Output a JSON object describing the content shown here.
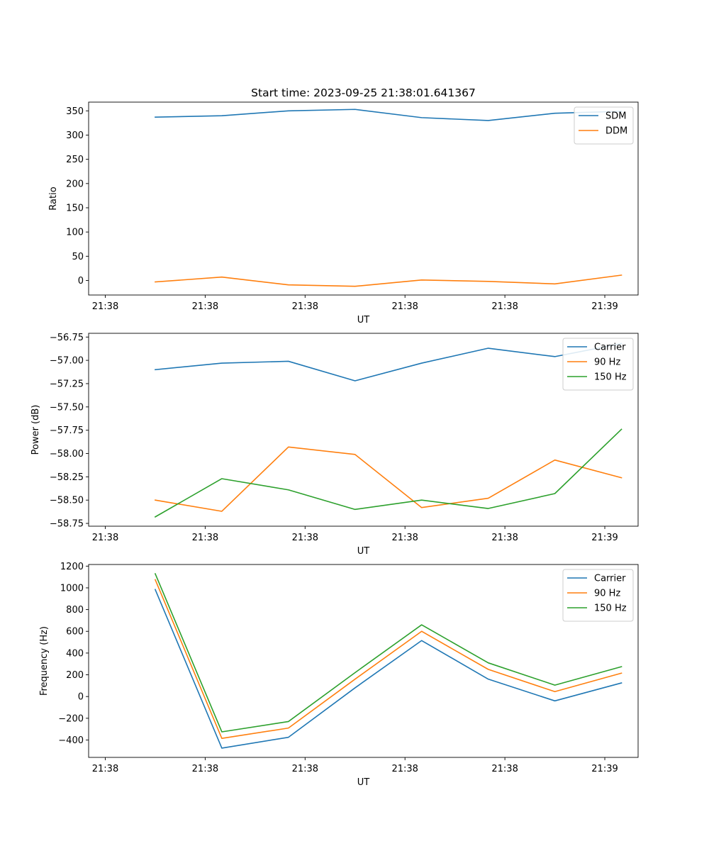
{
  "title": "Start time: 2023-09-25 21:38:01.641367",
  "colors": {
    "c0": "#1f77b4",
    "c1": "#ff7f0e",
    "c2": "#2ca02c"
  },
  "chart_data": [
    {
      "type": "line",
      "ylabel": "Ratio",
      "xlabel": "UT",
      "x": [
        1,
        2,
        3,
        4,
        5,
        6,
        7,
        8
      ],
      "x_tick_positions": [
        0.25,
        1.75,
        3.25,
        4.75,
        6.25,
        7.75
      ],
      "x_tick_labels": [
        "21:38",
        "21:38",
        "21:38",
        "21:38",
        "21:38",
        "21:39"
      ],
      "xlim": [
        0.0,
        8.25
      ],
      "ylim": [
        -30,
        368
      ],
      "y_ticks": [
        0,
        50,
        100,
        150,
        200,
        250,
        300,
        350
      ],
      "y_tick_labels": [
        "0",
        "50",
        "100",
        "150",
        "200",
        "250",
        "300",
        "350"
      ],
      "legend_position": "top-right",
      "series": [
        {
          "name": "SDM",
          "color_key": "c0",
          "values": [
            337,
            340,
            350,
            353,
            336,
            330,
            345,
            349
          ]
        },
        {
          "name": "DDM",
          "color_key": "c1",
          "values": [
            -3,
            7,
            -9,
            -12,
            1,
            -2,
            -7,
            11
          ]
        }
      ]
    },
    {
      "type": "line",
      "ylabel": "Power (dB)",
      "xlabel": "UT",
      "x": [
        1,
        2,
        3,
        4,
        5,
        6,
        7,
        8
      ],
      "x_tick_positions": [
        0.25,
        1.75,
        3.25,
        4.75,
        6.25,
        7.75
      ],
      "x_tick_labels": [
        "21:38",
        "21:38",
        "21:38",
        "21:38",
        "21:38",
        "21:39"
      ],
      "xlim": [
        0.0,
        8.25
      ],
      "ylim": [
        -58.78,
        -56.71
      ],
      "y_ticks": [
        -58.75,
        -58.5,
        -58.25,
        -58.0,
        -57.75,
        -57.5,
        -57.25,
        -57.0,
        -56.75
      ],
      "y_tick_labels": [
        "−58.75",
        "−58.50",
        "−58.25",
        "−58.00",
        "−57.75",
        "−57.50",
        "−57.25",
        "−57.00",
        "−56.75"
      ],
      "legend_position": "top-right",
      "series": [
        {
          "name": "Carrier",
          "color_key": "c0",
          "values": [
            -57.1,
            -57.03,
            -57.01,
            -57.22,
            -57.03,
            -56.87,
            -56.96,
            -56.82
          ]
        },
        {
          "name": "90 Hz",
          "color_key": "c1",
          "values": [
            -58.5,
            -58.62,
            -57.93,
            -58.01,
            -58.58,
            -58.48,
            -58.07,
            -58.26
          ]
        },
        {
          "name": "150 Hz",
          "color_key": "c2",
          "values": [
            -58.68,
            -58.27,
            -58.39,
            -58.6,
            -58.5,
            -58.59,
            -58.43,
            -57.74
          ]
        }
      ]
    },
    {
      "type": "line",
      "ylabel": "Frequency (Hz)",
      "xlabel": "UT",
      "x": [
        1,
        2,
        3,
        4,
        5,
        6,
        7,
        8
      ],
      "x_tick_positions": [
        0.25,
        1.75,
        3.25,
        4.75,
        6.25,
        7.75
      ],
      "x_tick_labels": [
        "21:38",
        "21:38",
        "21:38",
        "21:38",
        "21:38",
        "21:39"
      ],
      "xlim": [
        0.0,
        8.25
      ],
      "ylim": [
        -560,
        1215
      ],
      "y_ticks": [
        -400,
        -200,
        0,
        200,
        400,
        600,
        800,
        1000,
        1200
      ],
      "y_tick_labels": [
        "−400",
        "−200",
        "0",
        "200",
        "400",
        "600",
        "800",
        "1000",
        "1200"
      ],
      "legend_position": "top-right",
      "series": [
        {
          "name": "Carrier",
          "color_key": "c0",
          "values": [
            985,
            -475,
            -375,
            80,
            515,
            160,
            -40,
            125
          ]
        },
        {
          "name": "90 Hz",
          "color_key": "c1",
          "values": [
            1075,
            -385,
            -290,
            160,
            600,
            250,
            45,
            215
          ]
        },
        {
          "name": "150 Hz",
          "color_key": "c2",
          "values": [
            1130,
            -325,
            -230,
            220,
            660,
            310,
            105,
            275
          ]
        }
      ]
    }
  ]
}
